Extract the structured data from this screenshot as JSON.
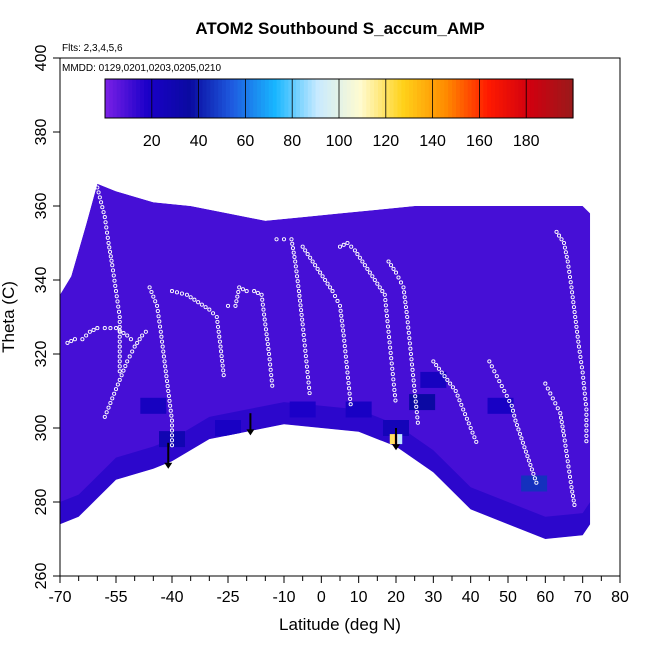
{
  "chart_data": {
    "type": "heatmap",
    "title": "ATOM2 Southbound S_accum_AMP",
    "subtitle_flights": "Flts: 2,3,4,5,6",
    "subtitle_dates": "MMDD: 0129,0201,0203,0205,0210",
    "xlabel": "Latitude (deg N)",
    "ylabel": "Theta (C)",
    "xlim": [
      -70,
      80
    ],
    "ylim": [
      260,
      400
    ],
    "x_ticks": [
      -70,
      -55,
      -40,
      -25,
      -10,
      0,
      10,
      20,
      30,
      40,
      50,
      60,
      70,
      80
    ],
    "x_tick_labels": [
      "-70",
      "-55",
      "-40",
      "-25",
      "-10",
      "0",
      "10",
      "20",
      "30",
      "40",
      "50",
      "60",
      "70",
      "80"
    ],
    "x_minor_ticks": [
      -65,
      -60,
      -50,
      -45,
      -35,
      -30,
      -20,
      -15,
      -5,
      5,
      15,
      25,
      35,
      45,
      55,
      65,
      75
    ],
    "y_ticks": [
      260,
      280,
      300,
      320,
      340,
      360,
      380,
      400
    ],
    "y_tick_labels": [
      "260",
      "280",
      "300",
      "320",
      "340",
      "360",
      "380",
      "400"
    ],
    "grid": false,
    "colorbar": {
      "range": [
        0,
        200
      ],
      "ticks": [
        20,
        40,
        60,
        80,
        100,
        120,
        140,
        160,
        180
      ],
      "tick_labels": [
        "20",
        "40",
        "60",
        "80",
        "100",
        "120",
        "140",
        "160",
        "180"
      ],
      "colors": [
        "#7b21e6",
        "#1a00c8",
        "#0a0aa0",
        "#1e5ce0",
        "#18b6ff",
        "#c8eaff",
        "#fffbd0",
        "#ffd21a",
        "#ff8c00",
        "#ff1a00",
        "#d00010",
        "#9a1a1a"
      ]
    },
    "background_value": 10,
    "data_extent": {
      "upper_boundary": [
        [
          -70,
          336
        ],
        [
          -67,
          341
        ],
        [
          -63,
          355
        ],
        [
          -60,
          366
        ],
        [
          -55,
          364
        ],
        [
          -45,
          361
        ],
        [
          -35,
          360
        ],
        [
          -25,
          358
        ],
        [
          -15,
          356
        ],
        [
          -5,
          357
        ],
        [
          5,
          358
        ],
        [
          15,
          359
        ],
        [
          25,
          360
        ],
        [
          35,
          360
        ],
        [
          45,
          360
        ],
        [
          55,
          360
        ],
        [
          62,
          360
        ],
        [
          70,
          360
        ],
        [
          72,
          358
        ]
      ],
      "lower_boundary": [
        [
          -70,
          274
        ],
        [
          -65,
          276
        ],
        [
          -60,
          281
        ],
        [
          -55,
          286
        ],
        [
          -45,
          289
        ],
        [
          -40,
          291
        ],
        [
          -30,
          297
        ],
        [
          -20,
          299
        ],
        [
          -10,
          301
        ],
        [
          0,
          300
        ],
        [
          10,
          299
        ],
        [
          20,
          295
        ],
        [
          30,
          288
        ],
        [
          40,
          278
        ],
        [
          50,
          274
        ],
        [
          60,
          270
        ],
        [
          70,
          271
        ],
        [
          72,
          274
        ]
      ]
    },
    "high_value_patches": [
      {
        "lat": -40,
        "theta": 297,
        "value": 28
      },
      {
        "lat": -45,
        "theta": 306,
        "value": 22
      },
      {
        "lat": -40,
        "theta": 287,
        "value": 30
      },
      {
        "lat": -25,
        "theta": 300,
        "value": 20
      },
      {
        "lat": -5,
        "theta": 305,
        "value": 18
      },
      {
        "lat": 10,
        "theta": 305,
        "value": 20
      },
      {
        "lat": 20,
        "theta": 300,
        "value": 25
      },
      {
        "lat": 27,
        "theta": 307,
        "value": 35
      },
      {
        "lat": 30,
        "theta": 313,
        "value": 22
      },
      {
        "lat": 57,
        "theta": 285,
        "value": 45
      },
      {
        "lat": 48,
        "theta": 306,
        "value": 20
      },
      {
        "lat": 20,
        "theta": 297,
        "value": 160
      },
      {
        "lat": 19,
        "theta": 297,
        "value": 120
      },
      {
        "lat": 21,
        "theta": 297,
        "value": 90
      }
    ],
    "flight_tracks": [
      {
        "points": [
          [
            -68,
            323
          ],
          [
            -66,
            324
          ],
          [
            -64,
            324
          ],
          [
            -62,
            326
          ],
          [
            -60,
            327
          ],
          [
            -58,
            327
          ],
          [
            -55,
            327
          ],
          [
            -52,
            325
          ],
          [
            -50,
            323
          ]
        ]
      },
      {
        "points": [
          [
            -58,
            303
          ],
          [
            -56,
            308
          ],
          [
            -54,
            313
          ],
          [
            -52,
            318
          ],
          [
            -50,
            322
          ],
          [
            -48,
            325
          ],
          [
            -46,
            327
          ]
        ]
      },
      {
        "points": [
          [
            -60,
            365
          ],
          [
            -58,
            357
          ],
          [
            -57,
            350
          ],
          [
            -56,
            344
          ],
          [
            -55,
            337
          ],
          [
            -54,
            330
          ],
          [
            -54,
            322
          ],
          [
            -54,
            314
          ]
        ]
      },
      {
        "points": [
          [
            -46,
            338
          ],
          [
            -44,
            333
          ],
          [
            -43,
            326
          ],
          [
            -42,
            318
          ],
          [
            -41,
            310
          ],
          [
            -40,
            302
          ],
          [
            -40,
            294
          ]
        ]
      },
      {
        "points": [
          [
            -40,
            337
          ],
          [
            -36,
            336
          ],
          [
            -33,
            334
          ],
          [
            -30,
            332
          ],
          [
            -28,
            330
          ],
          [
            -27,
            322
          ],
          [
            -26,
            313
          ]
        ]
      },
      {
        "points": [
          [
            -25,
            333
          ],
          [
            -23,
            333
          ],
          [
            -22,
            338
          ],
          [
            -20,
            337
          ],
          [
            -18,
            337
          ],
          [
            -16,
            336
          ],
          [
            -15,
            328
          ],
          [
            -14,
            320
          ],
          [
            -13,
            310
          ]
        ]
      },
      {
        "points": [
          [
            -12,
            351
          ],
          [
            -10,
            351
          ],
          [
            -8,
            351
          ],
          [
            -7,
            345
          ],
          [
            -6,
            337
          ],
          [
            -5,
            328
          ],
          [
            -4,
            318
          ],
          [
            -3,
            308
          ]
        ]
      },
      {
        "points": [
          [
            -5,
            349
          ],
          [
            -3,
            346
          ],
          [
            -1,
            343
          ],
          [
            1,
            340
          ],
          [
            3,
            337
          ],
          [
            5,
            333
          ],
          [
            6,
            325
          ],
          [
            7,
            315
          ],
          [
            8,
            305
          ]
        ]
      },
      {
        "points": [
          [
            5,
            349
          ],
          [
            7,
            350
          ],
          [
            9,
            348
          ],
          [
            11,
            345
          ],
          [
            13,
            342
          ],
          [
            15,
            339
          ],
          [
            17,
            336
          ],
          [
            18,
            326
          ],
          [
            19,
            316
          ],
          [
            20,
            306
          ]
        ]
      },
      {
        "points": [
          [
            18,
            345
          ],
          [
            20,
            342
          ],
          [
            22,
            338
          ],
          [
            23,
            330
          ],
          [
            24,
            320
          ],
          [
            25,
            310
          ],
          [
            26,
            300
          ]
        ]
      },
      {
        "points": [
          [
            30,
            318
          ],
          [
            33,
            314
          ],
          [
            36,
            310
          ],
          [
            38,
            305
          ],
          [
            40,
            300
          ],
          [
            42,
            295
          ]
        ]
      },
      {
        "points": [
          [
            45,
            318
          ],
          [
            47,
            314
          ],
          [
            49,
            310
          ],
          [
            51,
            306
          ],
          [
            52,
            302
          ],
          [
            54,
            296
          ],
          [
            56,
            290
          ],
          [
            58,
            284
          ]
        ]
      },
      {
        "points": [
          [
            63,
            353
          ],
          [
            65,
            350
          ],
          [
            66,
            345
          ],
          [
            67,
            338
          ],
          [
            68,
            330
          ],
          [
            69,
            322
          ],
          [
            70,
            315
          ],
          [
            71,
            305
          ],
          [
            71,
            295
          ]
        ]
      },
      {
        "points": [
          [
            60,
            312
          ],
          [
            62,
            308
          ],
          [
            64,
            304
          ],
          [
            65,
            298
          ],
          [
            66,
            291
          ],
          [
            67,
            284
          ],
          [
            68,
            278
          ]
        ]
      }
    ],
    "arrows": [
      {
        "lat": -41,
        "theta_top": 296,
        "theta_tip": 289
      },
      {
        "lat": -19,
        "theta_top": 304,
        "theta_tip": 298
      },
      {
        "lat": 20,
        "theta_top": 300,
        "theta_tip": 294
      }
    ]
  }
}
